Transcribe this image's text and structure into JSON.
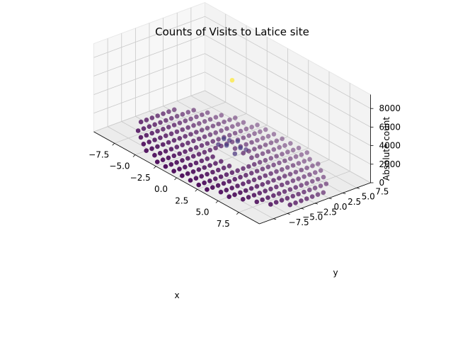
{
  "chart_data": {
    "type": "scatter",
    "dimensions": 3,
    "title": "Counts of Visits to Latice site",
    "xlabel": "x",
    "ylabel": "y",
    "zlabel": "Absolute count",
    "xlim": [
      -10,
      10
    ],
    "ylim": [
      -10,
      10
    ],
    "zlim": [
      0,
      9500
    ],
    "x_ticks": [
      "−7.5",
      "−5.0",
      "−2.5",
      "0.0",
      "2.5",
      "5.0",
      "7.5"
    ],
    "y_ticks": [
      "−7.5",
      "−5.0",
      "−2.5",
      "0.0",
      "2.5",
      "5.0",
      "7.5"
    ],
    "z_ticks": [
      "0",
      "2000",
      "4000",
      "6000",
      "8000"
    ],
    "colormap": "viridis",
    "grid": true,
    "lattice": {
      "x_range": [
        -9,
        9
      ],
      "y_range": [
        -9,
        9
      ],
      "radius": 9.5
    },
    "points": [
      {
        "x": 0,
        "y": 0,
        "z": 8300
      },
      {
        "x": 1,
        "y": 0,
        "z": 1500
      },
      {
        "x": -1,
        "y": 0,
        "z": 1500
      },
      {
        "x": 0,
        "y": 1,
        "z": 1500
      },
      {
        "x": 0,
        "y": -1,
        "z": 1500
      },
      {
        "x": 1,
        "y": 1,
        "z": 1100
      },
      {
        "x": -1,
        "y": 1,
        "z": 1100
      },
      {
        "x": 1,
        "y": -1,
        "z": 1100
      },
      {
        "x": -1,
        "y": -1,
        "z": 1100
      }
    ]
  }
}
